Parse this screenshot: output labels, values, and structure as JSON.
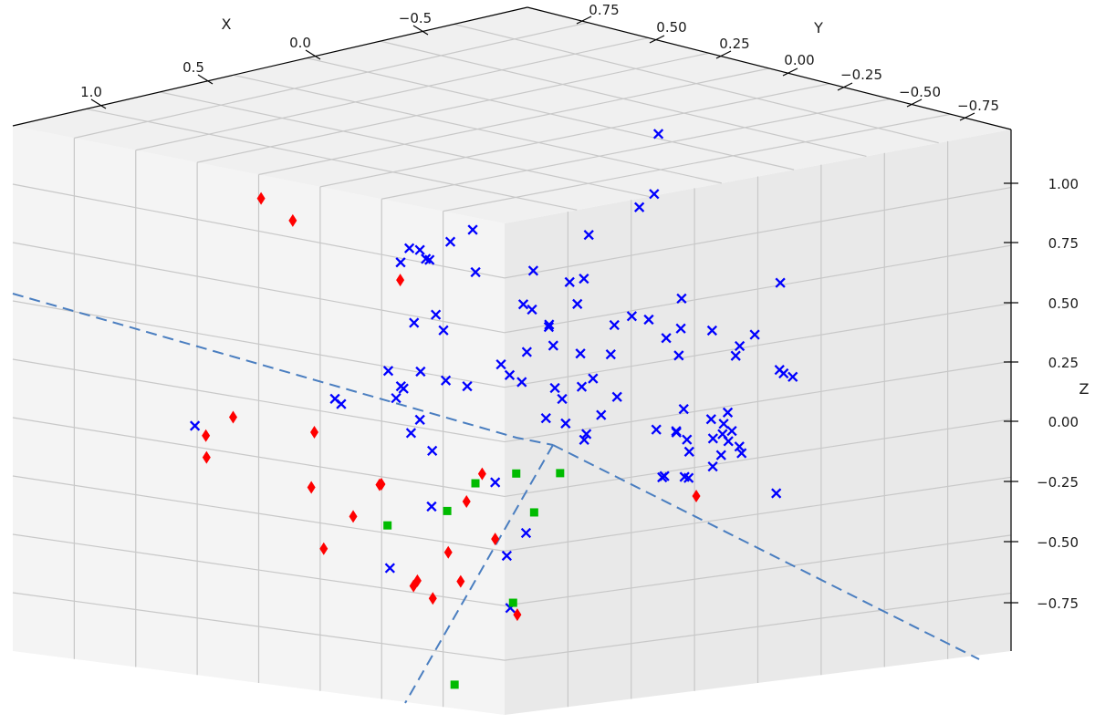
{
  "chart_data": {
    "type": "scatter",
    "projection": "3d",
    "xlabel": "X",
    "ylabel": "Y",
    "zlabel": "Z",
    "x_ticks": [
      "1.0",
      "0.5",
      "0.0",
      "−0.5"
    ],
    "y_ticks": [
      "0.75",
      "0.50",
      "0.25",
      "0.00",
      "−0.25",
      "−0.50",
      "−0.75"
    ],
    "z_ticks": [
      "1.00",
      "0.75",
      "0.50",
      "0.25",
      "0.00",
      "−0.25",
      "−0.50",
      "−0.75"
    ],
    "xlim": [
      -0.7,
      1.25
    ],
    "ylim": [
      -0.85,
      0.85
    ],
    "zlim": [
      -0.95,
      1.15
    ],
    "grid": true,
    "colors": {
      "x": "#0000ff",
      "diamond": "#ff0000",
      "square": "#00bb00",
      "line": "#4a7ec0"
    },
    "series": [
      {
        "marker": "x",
        "color": "#0000ff",
        "points": [
          [
            -0.28,
            0.0,
            1.03
          ],
          [
            0.38,
            0.17,
            0.44
          ],
          [
            -0.17,
            0.21,
            0.41
          ],
          [
            -0.16,
            0.62,
            0.47
          ],
          [
            0.24,
            -0.02,
            0.3
          ],
          [
            -0.2,
            0.37,
            0.25
          ],
          [
            0.45,
            0.07,
            0.22
          ],
          [
            0.06,
            0.44,
            0.22
          ],
          [
            0.28,
            -0.25,
            0.23
          ],
          [
            -0.02,
            -0.04,
            -0.02
          ],
          [
            0.05,
            0.6,
            0.45
          ],
          [
            0.15,
            0.46,
            0.27
          ],
          [
            -0.04,
            0.43,
            0.6
          ],
          [
            0.06,
            0.56,
            0.52
          ],
          [
            -0.18,
            0.55,
            0.36
          ],
          [
            0.52,
            0.18,
            0.14
          ],
          [
            -0.12,
            0.69,
            0.43
          ],
          [
            0.48,
            0.09,
            -0.06
          ],
          [
            0.28,
            0.43,
            0.12
          ],
          [
            0.2,
            -0.05,
            0.03
          ],
          [
            0.27,
            -0.03,
            0.19
          ],
          [
            0.02,
            0.06,
            0.03
          ],
          [
            0.2,
            -0.06,
            0.4
          ],
          [
            0.22,
            -0.08,
            0.42
          ],
          [
            0.11,
            -0.1,
            0.58
          ],
          [
            0.07,
            -0.08,
            0.74
          ],
          [
            0.0,
            0.18,
            0.51
          ],
          [
            0.19,
            0.4,
            0.1
          ],
          [
            0.35,
            0.22,
            0.64
          ],
          [
            0.31,
            0.27,
            0.62
          ],
          [
            0.07,
            -0.17,
            0.4
          ],
          [
            0.0,
            -0.03,
            0.13
          ],
          [
            0.47,
            0.2,
            0.16
          ],
          [
            0.08,
            -0.06,
            0.26
          ],
          [
            -0.22,
            -0.47,
            -0.28
          ],
          [
            0.22,
            -0.1,
            0.17
          ],
          [
            0.17,
            -0.25,
            0.33
          ],
          [
            0.1,
            -0.38,
            0.41
          ],
          [
            -0.02,
            -0.32,
            0.4
          ],
          [
            0.28,
            -0.15,
            0.37
          ],
          [
            -0.02,
            -0.43,
            0.42
          ],
          [
            0.02,
            -0.35,
            0.31
          ],
          [
            0.09,
            0.21,
            0.15
          ],
          [
            0.51,
            -0.21,
            0.33
          ],
          [
            0.22,
            -0.43,
            0.53
          ],
          [
            -0.07,
            0.09,
            0.38
          ],
          [
            -0.12,
            -0.23,
            0.47
          ],
          [
            -0.05,
            -0.12,
            0.39
          ],
          [
            -0.21,
            -0.05,
            0.82
          ],
          [
            -0.1,
            -0.1,
            0.81
          ],
          [
            0.2,
            -0.3,
            0.18
          ],
          [
            0.02,
            -0.55,
            0.36
          ],
          [
            -0.11,
            -0.63,
            0.26
          ],
          [
            -0.2,
            -0.36,
            0.29
          ],
          [
            -0.16,
            -0.45,
            0.37
          ],
          [
            -0.3,
            -0.41,
            0.53
          ],
          [
            0.16,
            0.43,
            -0.11
          ],
          [
            -0.07,
            0.28,
            0.33
          ],
          [
            0.73,
            0.2,
            0.19
          ],
          [
            0.76,
            0.15,
            0.19
          ],
          [
            0.34,
            0.33,
            0.1
          ],
          [
            0.28,
            0.35,
            -0.11
          ],
          [
            -0.03,
            0.44,
            -0.03
          ],
          [
            -0.01,
            -0.48,
            0.06
          ],
          [
            0.17,
            -0.48,
            0.08
          ],
          [
            0.18,
            -0.49,
            0.08
          ],
          [
            0.05,
            -0.55,
            0.14
          ],
          [
            0.11,
            -0.62,
            0.1
          ],
          [
            0.29,
            -0.55,
            -0.05
          ],
          [
            0.17,
            -0.71,
            0.05
          ],
          [
            0.21,
            -0.68,
            0.13
          ],
          [
            -0.14,
            -0.57,
            0.25
          ],
          [
            -0.2,
            -0.5,
            0.23
          ],
          [
            0.37,
            -0.35,
            0.09
          ],
          [
            0.12,
            -0.46,
            0.15
          ],
          [
            0.4,
            -0.37,
            0.08
          ],
          [
            0.14,
            -0.49,
            0.04
          ],
          [
            0.31,
            -0.54,
            0.14
          ],
          [
            0.25,
            -0.6,
            0.05
          ],
          [
            0.21,
            -0.64,
            0.18
          ],
          [
            0.2,
            -0.73,
            0.09
          ],
          [
            0.28,
            -0.74,
            0.08
          ],
          [
            0.3,
            -0.73,
            0.15
          ],
          [
            0.08,
            -0.58,
            0.04
          ],
          [
            0.3,
            -0.63,
            -0.03
          ],
          [
            0.36,
            -0.7,
            0.0
          ],
          [
            0.15,
            -0.59,
            -0.04
          ],
          [
            0.46,
            -0.7,
            0.03
          ],
          [
            0.2,
            0.02,
            -0.45
          ],
          [
            0.5,
            0.22,
            -0.56
          ],
          [
            0.45,
            0.12,
            -0.3
          ],
          [
            0.51,
            -0.2,
            -0.4
          ],
          [
            0.68,
            -0.37,
            -0.52
          ],
          [
            0.7,
            0.72,
            -0.06
          ],
          [
            0.05,
            0.02,
            -0.05
          ],
          [
            0.5,
            -0.15,
            -0.12
          ]
        ]
      },
      {
        "marker": "diamond",
        "color": "#ff0000",
        "points": [
          [
            0.32,
            0.84,
            0.72
          ],
          [
            0.34,
            0.71,
            0.67
          ],
          [
            0.17,
            0.49,
            0.44
          ],
          [
            0.76,
            0.53,
            0.04
          ],
          [
            0.56,
            0.43,
            -0.05
          ],
          [
            0.85,
            0.54,
            -0.1
          ],
          [
            0.68,
            0.7,
            -0.1
          ],
          [
            0.5,
            0.25,
            -0.23
          ],
          [
            0.41,
            0.34,
            -0.28
          ],
          [
            0.55,
            0.45,
            -0.28
          ],
          [
            0.35,
            0.09,
            -0.3
          ],
          [
            0.51,
            0.34,
            -0.38
          ],
          [
            0.43,
            0.08,
            -0.48
          ],
          [
            0.6,
            0.36,
            -0.49
          ],
          [
            0.54,
            0.1,
            -0.59
          ],
          [
            0.37,
            0.19,
            -0.71
          ],
          [
            0.59,
            0.04,
            -0.54
          ],
          [
            0.04,
            -0.43,
            -0.23
          ],
          [
            0.36,
            -0.02,
            -0.42
          ],
          [
            0.48,
            -0.01,
            -0.56
          ],
          [
            0.33,
            -0.07,
            -0.72
          ],
          [
            0.28,
            0.1,
            -0.21
          ]
        ]
      },
      {
        "marker": "square",
        "color": "#00bb00",
        "points": [
          [
            0.38,
            0.13,
            -0.34
          ],
          [
            0.23,
            0.17,
            -0.28
          ],
          [
            0.14,
            0.11,
            -0.25
          ],
          [
            0.06,
            0.03,
            -0.25
          ],
          [
            0.18,
            0.01,
            -0.37
          ],
          [
            0.52,
            0.21,
            -0.38
          ],
          [
            0.4,
            -0.12,
            -0.64
          ],
          [
            0.6,
            -0.1,
            -0.92
          ]
        ]
      }
    ]
  }
}
